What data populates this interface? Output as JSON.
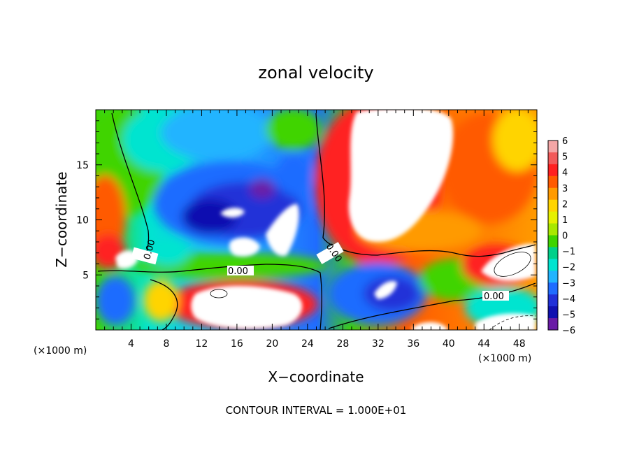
{
  "chart_data": {
    "type": "heatmap",
    "title": "zonal velocity",
    "xlabel": "X−coordinate",
    "ylabel": "Z−coordinate",
    "x_unit": "(×1000 m)",
    "z_unit": "(×1000 m)",
    "xlim": [
      0,
      50
    ],
    "ylim": [
      0,
      20
    ],
    "x_ticks": [
      "4",
      "8",
      "12",
      "16",
      "20",
      "24",
      "28",
      "32",
      "36",
      "40",
      "44",
      "48"
    ],
    "y_ticks": [
      "5",
      "10",
      "15"
    ],
    "colorbar": {
      "range": [
        -6,
        6
      ],
      "labels": [
        "6",
        "5",
        "4",
        "3",
        "2",
        "1",
        "0",
        "−1",
        "−2",
        "−3",
        "−4",
        "−5",
        "−6"
      ],
      "colors": [
        "#f4a6a6",
        "#f25a5a",
        "#ff2020",
        "#ff5a00",
        "#ff9a00",
        "#ffd400",
        "#e6f000",
        "#a8e800",
        "#3fd400",
        "#00d08a",
        "#00e4d0",
        "#22b4ff",
        "#1f6cff",
        "#2030d8",
        "#1010b0",
        "#6a1aa6"
      ]
    },
    "contour_labels": [
      "0.00",
      "0.00",
      "0.00",
      "0.00"
    ],
    "footer": "CONTOUR INTERVAL = 1.000E+01"
  }
}
